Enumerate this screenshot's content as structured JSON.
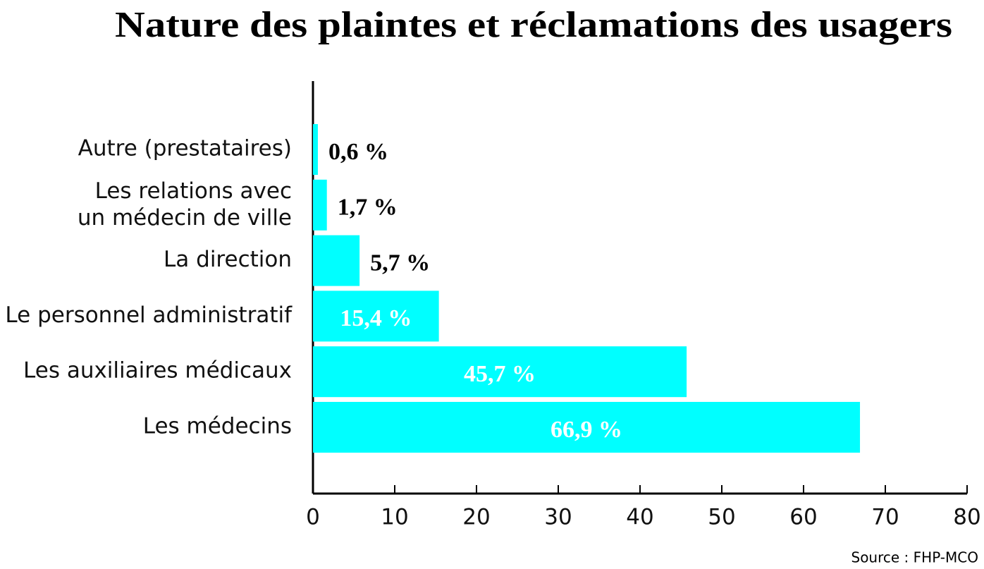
{
  "chart_data": {
    "type": "barh",
    "title": "Nature des plaintes et réclamations des usagers",
    "categories": [
      "Autre (prestataires)",
      "Les relations avec\nun médecin de ville",
      "La direction",
      "Le personnel administratif",
      "Les auxiliaires médicaux",
      "Les médecins"
    ],
    "values": [
      0.6,
      1.7,
      5.7,
      15.4,
      45.7,
      66.9
    ],
    "value_labels": [
      "0,6 %",
      "1,7 %",
      "5,7 %",
      "15,4 %",
      "45,7 %",
      "66,9 %"
    ],
    "color": "#00ffff",
    "xlim": [
      0,
      80
    ],
    "xticks": [
      0,
      10,
      20,
      30,
      40,
      50,
      60,
      70,
      80
    ],
    "source": "Source : FHP-MCO"
  }
}
